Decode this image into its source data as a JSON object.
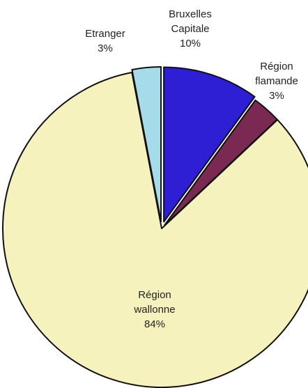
{
  "chart_data": {
    "type": "pie",
    "slices": [
      {
        "name_lines": [
          "Bruxelles",
          "Capitale"
        ],
        "value": 10,
        "value_label": "10%",
        "color": "#2e1fd4"
      },
      {
        "name_lines": [
          "Région",
          "flamande"
        ],
        "value": 3,
        "value_label": "3%",
        "color": "#7a2a52"
      },
      {
        "name_lines": [
          "Région",
          "wallonne"
        ],
        "value": 84,
        "value_label": "84%",
        "color": "#f6f2bd"
      },
      {
        "name_lines": [
          "Etranger"
        ],
        "value": 3,
        "value_label": "3%",
        "color": "#a6dcea"
      }
    ],
    "exploded": true,
    "start_angle_deg": 0,
    "title": "",
    "legend": "none"
  }
}
